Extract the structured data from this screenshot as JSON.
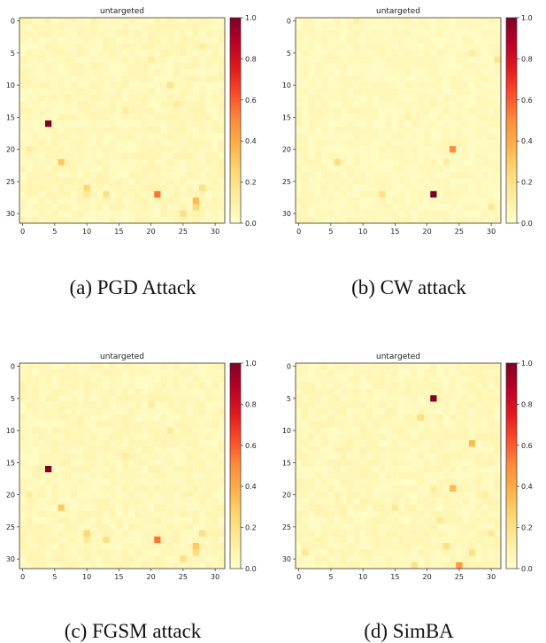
{
  "palette": {
    "colormap": "YlOrRd",
    "stops": [
      "#ffffcc",
      "#ffeda0",
      "#fed976",
      "#feb24c",
      "#fd8d3c",
      "#fc4e2a",
      "#e31a1c",
      "#bd0026",
      "#800026"
    ]
  },
  "panels": [
    {
      "caption": "(a) PGD Attack",
      "chart_data": {
        "type": "heatmap",
        "title": "untargeted",
        "x_ticks": [
          "0",
          "5",
          "10",
          "15",
          "20",
          "25",
          "30"
        ],
        "y_ticks": [
          "0",
          "5",
          "10",
          "15",
          "20",
          "25",
          "30"
        ],
        "xlim": [
          0,
          31
        ],
        "ylim": [
          0,
          31
        ],
        "colorbar": {
          "ticks": [
            "0.0",
            "0.2",
            "0.4",
            "0.6",
            "0.8",
            "1.0"
          ],
          "range": [
            0,
            1
          ]
        },
        "background_level": 0.05,
        "cells": [
          {
            "x": 4,
            "y": 16,
            "v": 1.0
          },
          {
            "x": 21,
            "y": 27,
            "v": 0.55
          },
          {
            "x": 6,
            "y": 22,
            "v": 0.3
          },
          {
            "x": 10,
            "y": 26,
            "v": 0.25
          },
          {
            "x": 27,
            "y": 28,
            "v": 0.35
          },
          {
            "x": 27,
            "y": 29,
            "v": 0.25
          },
          {
            "x": 28,
            "y": 26,
            "v": 0.2
          },
          {
            "x": 13,
            "y": 27,
            "v": 0.2
          },
          {
            "x": 25,
            "y": 30,
            "v": 0.2
          },
          {
            "x": 23,
            "y": 10,
            "v": 0.18
          },
          {
            "x": 20,
            "y": 6,
            "v": 0.12
          },
          {
            "x": 24,
            "y": 13,
            "v": 0.12
          },
          {
            "x": 1,
            "y": 20,
            "v": 0.12
          },
          {
            "x": 16,
            "y": 14,
            "v": 0.12
          },
          {
            "x": 10,
            "y": 27,
            "v": 0.15
          },
          {
            "x": 28,
            "y": 4,
            "v": 0.12
          }
        ]
      }
    },
    {
      "caption": "(b) CW attack",
      "chart_data": {
        "type": "heatmap",
        "title": "untargeted",
        "x_ticks": [
          "0",
          "5",
          "10",
          "15",
          "20",
          "25",
          "30"
        ],
        "y_ticks": [
          "0",
          "5",
          "10",
          "15",
          "20",
          "25",
          "30"
        ],
        "xlim": [
          0,
          31
        ],
        "ylim": [
          0,
          31
        ],
        "colorbar": {
          "ticks": [
            "0.0",
            "0.2",
            "0.4",
            "0.6",
            "0.8",
            "1.0"
          ],
          "range": [
            0,
            1
          ]
        },
        "background_level": 0.04,
        "cells": [
          {
            "x": 21,
            "y": 27,
            "v": 1.0
          },
          {
            "x": 24,
            "y": 20,
            "v": 0.5
          },
          {
            "x": 6,
            "y": 22,
            "v": 0.22
          },
          {
            "x": 13,
            "y": 27,
            "v": 0.2
          },
          {
            "x": 31,
            "y": 6,
            "v": 0.18
          },
          {
            "x": 30,
            "y": 29,
            "v": 0.15
          },
          {
            "x": 27,
            "y": 5,
            "v": 0.12
          },
          {
            "x": 23,
            "y": 22,
            "v": 0.12
          },
          {
            "x": 9,
            "y": 0,
            "v": 0.1
          },
          {
            "x": 17,
            "y": 15,
            "v": 0.1
          }
        ]
      }
    },
    {
      "caption": "(c) FGSM attack",
      "chart_data": {
        "type": "heatmap",
        "title": "untargeted",
        "x_ticks": [
          "0",
          "5",
          "10",
          "15",
          "20",
          "25",
          "30"
        ],
        "y_ticks": [
          "0",
          "5",
          "10",
          "15",
          "20",
          "25",
          "30"
        ],
        "xlim": [
          0,
          31
        ],
        "ylim": [
          0,
          31
        ],
        "colorbar": {
          "ticks": [
            "0.0",
            "0.2",
            "0.4",
            "0.6",
            "0.8",
            "1.0"
          ],
          "range": [
            0,
            1
          ]
        },
        "background_level": 0.05,
        "cells": [
          {
            "x": 4,
            "y": 16,
            "v": 1.0
          },
          {
            "x": 21,
            "y": 27,
            "v": 0.55
          },
          {
            "x": 6,
            "y": 22,
            "v": 0.3
          },
          {
            "x": 10,
            "y": 26,
            "v": 0.25
          },
          {
            "x": 27,
            "y": 28,
            "v": 0.3
          },
          {
            "x": 27,
            "y": 29,
            "v": 0.22
          },
          {
            "x": 28,
            "y": 26,
            "v": 0.2
          },
          {
            "x": 13,
            "y": 27,
            "v": 0.2
          },
          {
            "x": 25,
            "y": 30,
            "v": 0.2
          },
          {
            "x": 23,
            "y": 10,
            "v": 0.15
          },
          {
            "x": 20,
            "y": 6,
            "v": 0.12
          },
          {
            "x": 1,
            "y": 20,
            "v": 0.12
          },
          {
            "x": 16,
            "y": 14,
            "v": 0.12
          },
          {
            "x": 10,
            "y": 27,
            "v": 0.15
          }
        ]
      }
    },
    {
      "caption": "(d) SimBA",
      "chart_data": {
        "type": "heatmap",
        "title": "untargeted",
        "x_ticks": [
          "0",
          "5",
          "10",
          "15",
          "20",
          "25",
          "30"
        ],
        "y_ticks": [
          "0",
          "5",
          "10",
          "15",
          "20",
          "25",
          "30"
        ],
        "xlim": [
          0,
          31
        ],
        "ylim": [
          0,
          31
        ],
        "colorbar": {
          "ticks": [
            "0.0",
            "0.2",
            "0.4",
            "0.6",
            "0.8",
            "1.0"
          ],
          "range": [
            0,
            1
          ]
        },
        "background_level": 0.05,
        "cells": [
          {
            "x": 21,
            "y": 5,
            "v": 1.0
          },
          {
            "x": 25,
            "y": 31,
            "v": 0.45
          },
          {
            "x": 27,
            "y": 12,
            "v": 0.35
          },
          {
            "x": 24,
            "y": 19,
            "v": 0.35
          },
          {
            "x": 19,
            "y": 8,
            "v": 0.2
          },
          {
            "x": 27,
            "y": 29,
            "v": 0.2
          },
          {
            "x": 23,
            "y": 28,
            "v": 0.2
          },
          {
            "x": 18,
            "y": 31,
            "v": 0.2
          },
          {
            "x": 1,
            "y": 29,
            "v": 0.15
          },
          {
            "x": 30,
            "y": 26,
            "v": 0.15
          },
          {
            "x": 15,
            "y": 22,
            "v": 0.15
          },
          {
            "x": 22,
            "y": 24,
            "v": 0.15
          },
          {
            "x": 29,
            "y": 20,
            "v": 0.12
          },
          {
            "x": 21,
            "y": 19,
            "v": 0.12
          }
        ]
      }
    }
  ]
}
